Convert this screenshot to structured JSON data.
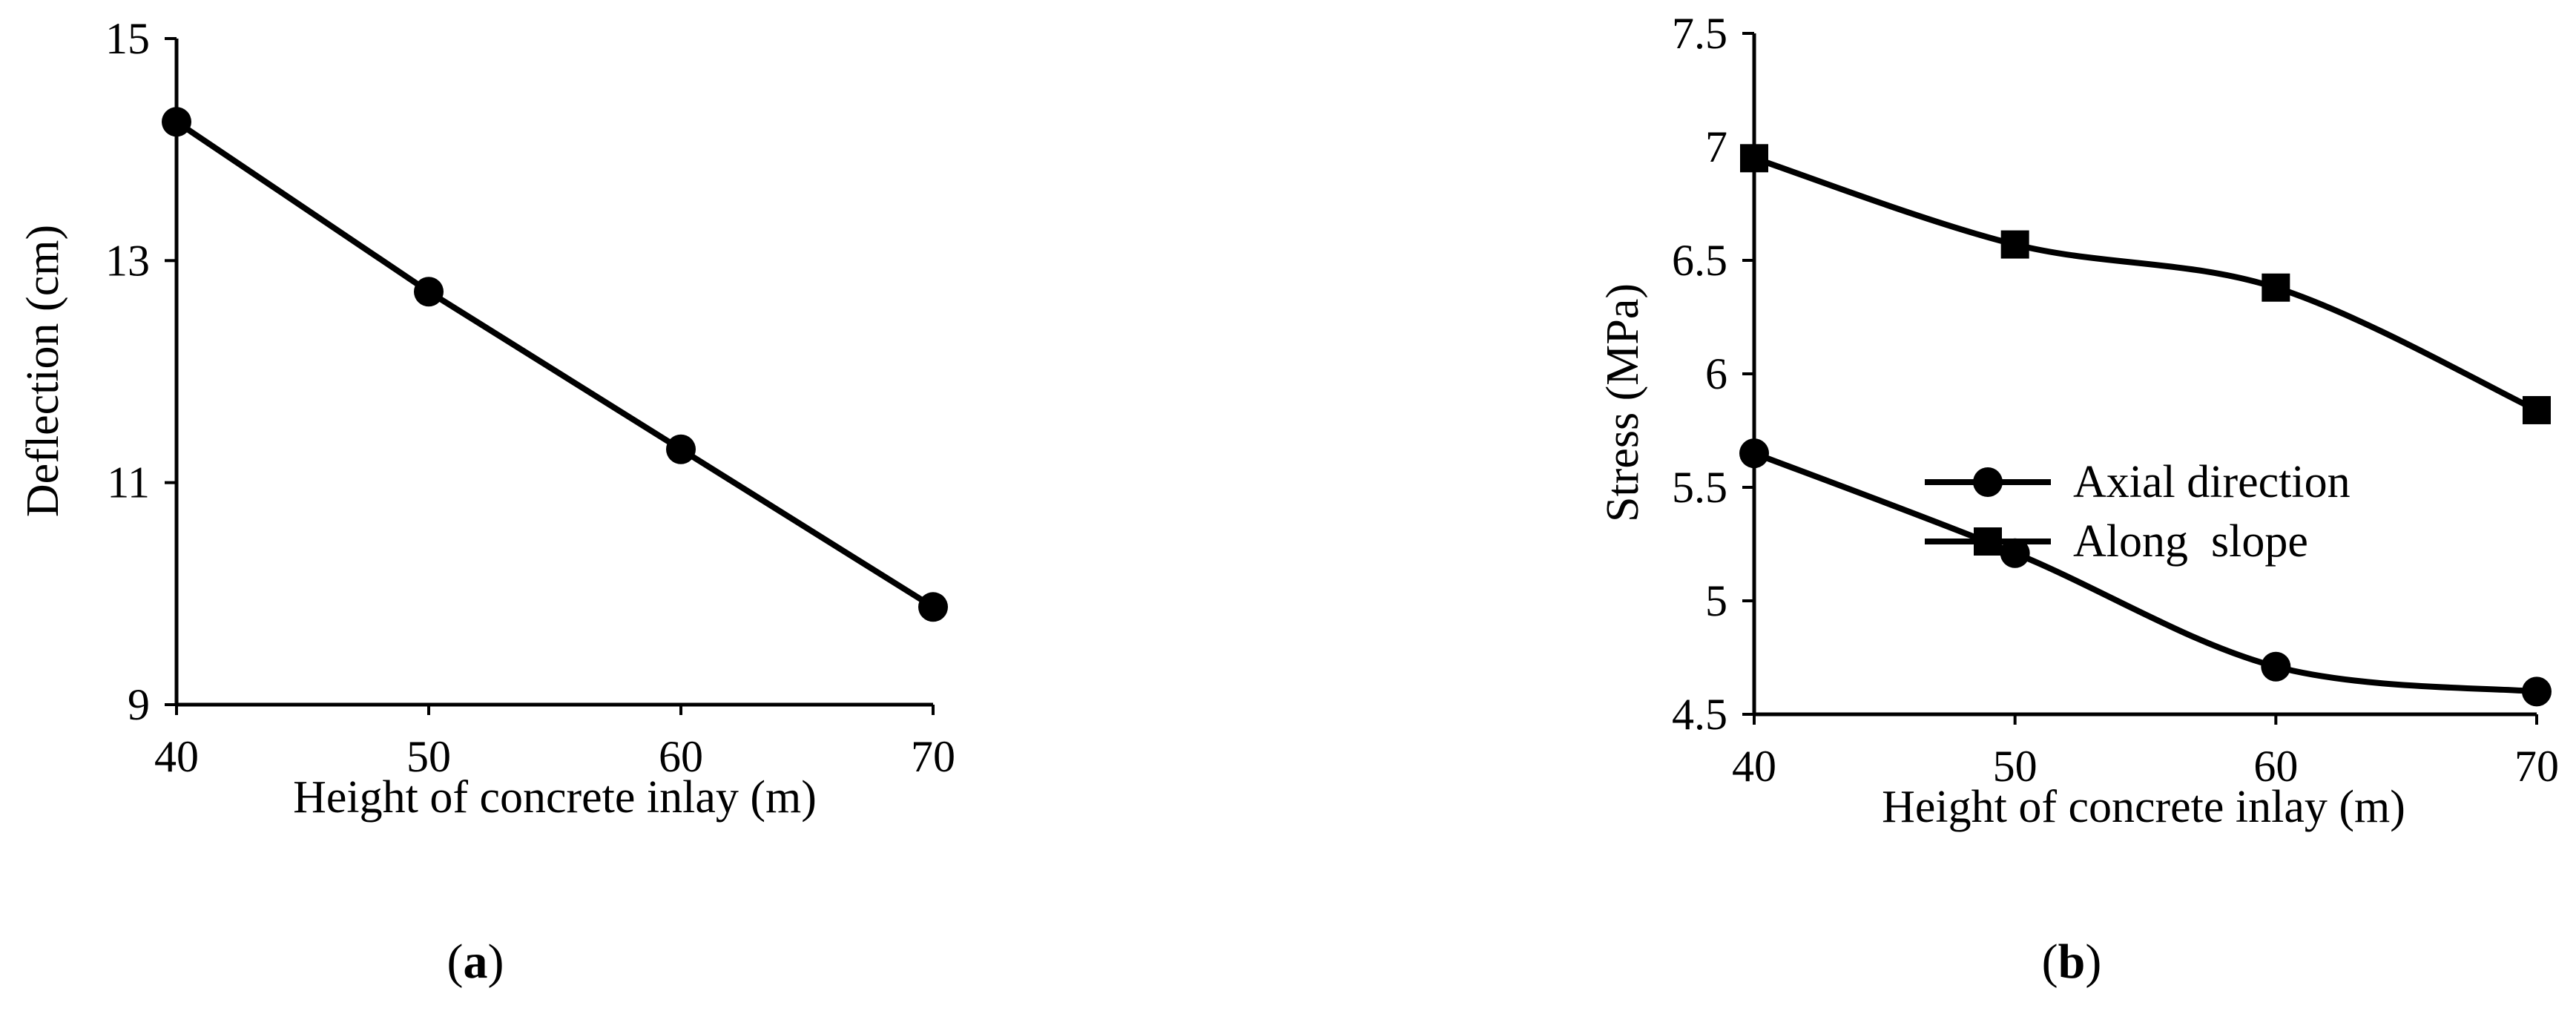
{
  "chart_data": [
    {
      "panel": "(a)",
      "panel_letter": "a",
      "type": "line",
      "xlabel": "Height of concrete inlay (m)",
      "ylabel": "Deflection (cm)",
      "x": [
        40,
        50,
        60,
        70
      ],
      "xlim": [
        40,
        70
      ],
      "ylim": [
        9,
        15
      ],
      "x_ticks": [
        "40",
        "50",
        "60",
        "70"
      ],
      "y_ticks": [
        "9",
        "11",
        "13",
        "15"
      ],
      "grid": false,
      "series": [
        {
          "values": [
            14.25,
            12.72,
            11.3,
            9.88
          ],
          "marker": "circle"
        }
      ]
    },
    {
      "panel": "(b)",
      "panel_letter": "b",
      "type": "line",
      "xlabel": "Height of concrete inlay (m)",
      "ylabel": "Stress (MPa)",
      "x": [
        40,
        50,
        60,
        70
      ],
      "xlim": [
        40,
        70
      ],
      "ylim": [
        4.5,
        7.5
      ],
      "x_ticks": [
        "40",
        "50",
        "60",
        "70"
      ],
      "y_ticks": [
        "4.5",
        "5",
        "5.5",
        "6",
        "6.5",
        "7",
        "7.5"
      ],
      "grid": false,
      "legend_position": "middle-right",
      "series": [
        {
          "name": "Axial direction",
          "values": [
            5.65,
            5.21,
            4.71,
            4.6
          ],
          "marker": "circle",
          "smooth": true
        },
        {
          "name": "Along  slope",
          "values": [
            6.95,
            6.57,
            6.38,
            5.84
          ],
          "marker": "square",
          "smooth": true
        }
      ]
    }
  ]
}
